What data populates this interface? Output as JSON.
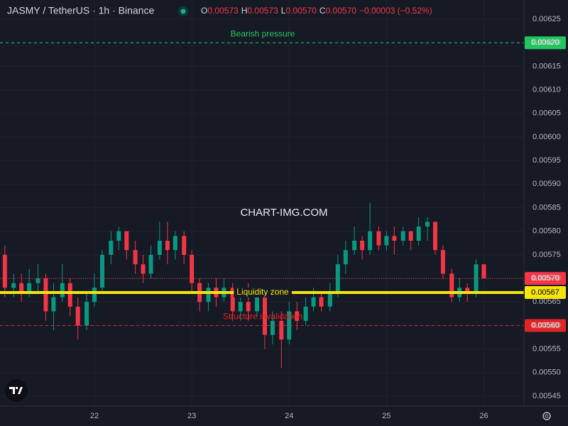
{
  "chart_data": {
    "type": "candlestick",
    "title": "JASMY / TetherUS · 1h · Binance",
    "ohlc_names": [
      "O",
      "H",
      "L",
      "C"
    ],
    "ohlc_values": [
      0.00573,
      0.00573,
      0.0057,
      0.0057
    ],
    "ohlc_labels": [
      "0.00573",
      "0.00573",
      "0.00570",
      "0.00570"
    ],
    "change": "−0.00003 (−0.52%)",
    "watermark": "CHART-IMG.COM",
    "up_color": "#089981",
    "down_color": "#f23645",
    "x": [
      21.08,
      21.17,
      21.25,
      21.33,
      21.42,
      21.5,
      21.58,
      21.67,
      21.75,
      21.83,
      21.92,
      22,
      22.08,
      22.17,
      22.25,
      22.33,
      22.42,
      22.5,
      22.58,
      22.67,
      22.75,
      22.83,
      22.92,
      23,
      23.08,
      23.17,
      23.25,
      23.33,
      23.42,
      23.5,
      23.58,
      23.67,
      23.75,
      23.83,
      23.92,
      24,
      24.08,
      24.17,
      24.25,
      24.33,
      24.42,
      24.5,
      24.58,
      24.67,
      24.75,
      24.83,
      24.92,
      25,
      25.08,
      25.17,
      25.25,
      25.33,
      25.42,
      25.5,
      25.58,
      25.67,
      25.75,
      25.83,
      25.92,
      26
    ],
    "open": [
      0.00575,
      0.00568,
      0.00569,
      0.00567,
      0.00569,
      0.0057,
      0.00563,
      0.00566,
      0.00569,
      0.00564,
      0.0056,
      0.00565,
      0.00568,
      0.00575,
      0.00578,
      0.0058,
      0.00576,
      0.00573,
      0.00571,
      0.00575,
      0.00578,
      0.00576,
      0.00579,
      0.00575,
      0.00569,
      0.00565,
      0.00568,
      0.00566,
      0.00568,
      0.00563,
      0.00565,
      0.00563,
      0.00566,
      0.00558,
      0.00561,
      0.00557,
      0.00563,
      0.00561,
      0.00564,
      0.00566,
      0.00564,
      0.00567,
      0.00573,
      0.00576,
      0.00578,
      0.00576,
      0.0058,
      0.00577,
      0.00579,
      0.00578,
      0.0058,
      0.00578,
      0.00581,
      0.00582,
      0.00576,
      0.00571,
      0.00566,
      0.00568,
      0.00567,
      0.00573
    ],
    "high": [
      0.00577,
      0.00571,
      0.00571,
      0.00572,
      0.00573,
      0.00571,
      0.00569,
      0.00573,
      0.0057,
      0.00566,
      0.00567,
      0.00571,
      0.00576,
      0.0058,
      0.00581,
      0.0058,
      0.00578,
      0.00575,
      0.00577,
      0.00582,
      0.00582,
      0.0058,
      0.0058,
      0.00576,
      0.0057,
      0.00569,
      0.0057,
      0.0057,
      0.00569,
      0.00567,
      0.00569,
      0.00568,
      0.00567,
      0.00563,
      0.00563,
      0.00565,
      0.00565,
      0.00566,
      0.00568,
      0.00567,
      0.00569,
      0.00575,
      0.00578,
      0.00581,
      0.00579,
      0.00586,
      0.00581,
      0.0058,
      0.00581,
      0.00581,
      0.0058,
      0.00583,
      0.00583,
      0.00582,
      0.00577,
      0.00572,
      0.0057,
      0.00569,
      0.00574,
      0.00573
    ],
    "low": [
      0.00566,
      0.00566,
      0.00565,
      0.00566,
      0.00567,
      0.00561,
      0.00559,
      0.00565,
      0.00562,
      0.00557,
      0.00559,
      0.00564,
      0.00567,
      0.00573,
      0.00576,
      0.00574,
      0.00571,
      0.00569,
      0.0057,
      0.00574,
      0.00573,
      0.00574,
      0.00573,
      0.00567,
      0.00563,
      0.00563,
      0.00564,
      0.00565,
      0.00561,
      0.00561,
      0.00561,
      0.00562,
      0.00555,
      0.00556,
      0.00551,
      0.00556,
      0.00559,
      0.0056,
      0.00563,
      0.00563,
      0.00563,
      0.00566,
      0.00571,
      0.00575,
      0.00574,
      0.00575,
      0.00576,
      0.00576,
      0.00575,
      0.00577,
      0.00576,
      0.00577,
      0.00578,
      0.00575,
      0.0057,
      0.00565,
      0.00565,
      0.00565,
      0.00566,
      0.0057
    ],
    "close": [
      0.00568,
      0.00569,
      0.00567,
      0.00569,
      0.0057,
      0.00563,
      0.00566,
      0.00569,
      0.00564,
      0.0056,
      0.00565,
      0.00568,
      0.00575,
      0.00578,
      0.0058,
      0.00576,
      0.00573,
      0.00571,
      0.00575,
      0.00578,
      0.00576,
      0.00579,
      0.00575,
      0.00569,
      0.00565,
      0.00568,
      0.00566,
      0.00568,
      0.00563,
      0.00565,
      0.00563,
      0.00566,
      0.00558,
      0.00561,
      0.00557,
      0.00563,
      0.00561,
      0.00564,
      0.00566,
      0.00564,
      0.00567,
      0.00573,
      0.00576,
      0.00578,
      0.00576,
      0.0058,
      0.00577,
      0.00579,
      0.00578,
      0.0058,
      0.00578,
      0.00581,
      0.00582,
      0.00576,
      0.00571,
      0.00566,
      0.00568,
      0.00567,
      0.00573,
      0.0057
    ],
    "xlim": [
      21.03,
      26.39
    ],
    "xticks": [
      22,
      23,
      24,
      25,
      26
    ],
    "ylim": [
      0.00545,
      0.00625
    ],
    "yticks": [
      0.00545,
      {
        "value": 0.0055,
        "label": "0.00550"
      },
      0.00555,
      {
        "value": 0.0056,
        "label": "0.00560"
      },
      0.00565,
      {
        "value": 0.0057,
        "label": "0.00570"
      },
      0.00575,
      {
        "value": 0.0058,
        "label": "0.00580"
      },
      0.00585,
      {
        "value": 0.0059,
        "label": "0.00590"
      },
      0.00595,
      {
        "value": 0.006,
        "label": "0.00600"
      },
      0.00605,
      {
        "value": 0.0061,
        "label": "0.00610"
      },
      0.00615,
      {
        "value": 0.0062,
        "label": "0.00620"
      },
      0.00625
    ],
    "grid": true,
    "levels": [
      {
        "label": "Bearish pressure",
        "value": 0.0062,
        "value_label": "0.00620",
        "color": "#22c55e",
        "style": "dashed"
      },
      {
        "label": "Liquidity zone",
        "value": 0.00567,
        "value_label": "0.00567",
        "color": "#f5e50a",
        "style": "solid"
      },
      {
        "label": "Structure invalidation",
        "value": 0.0056,
        "value_label": "0.00560",
        "color": "#e02424",
        "style": "dashed"
      }
    ],
    "last_price": {
      "value": 0.0057,
      "value_label": "0.00570",
      "color": "#f23645"
    }
  }
}
